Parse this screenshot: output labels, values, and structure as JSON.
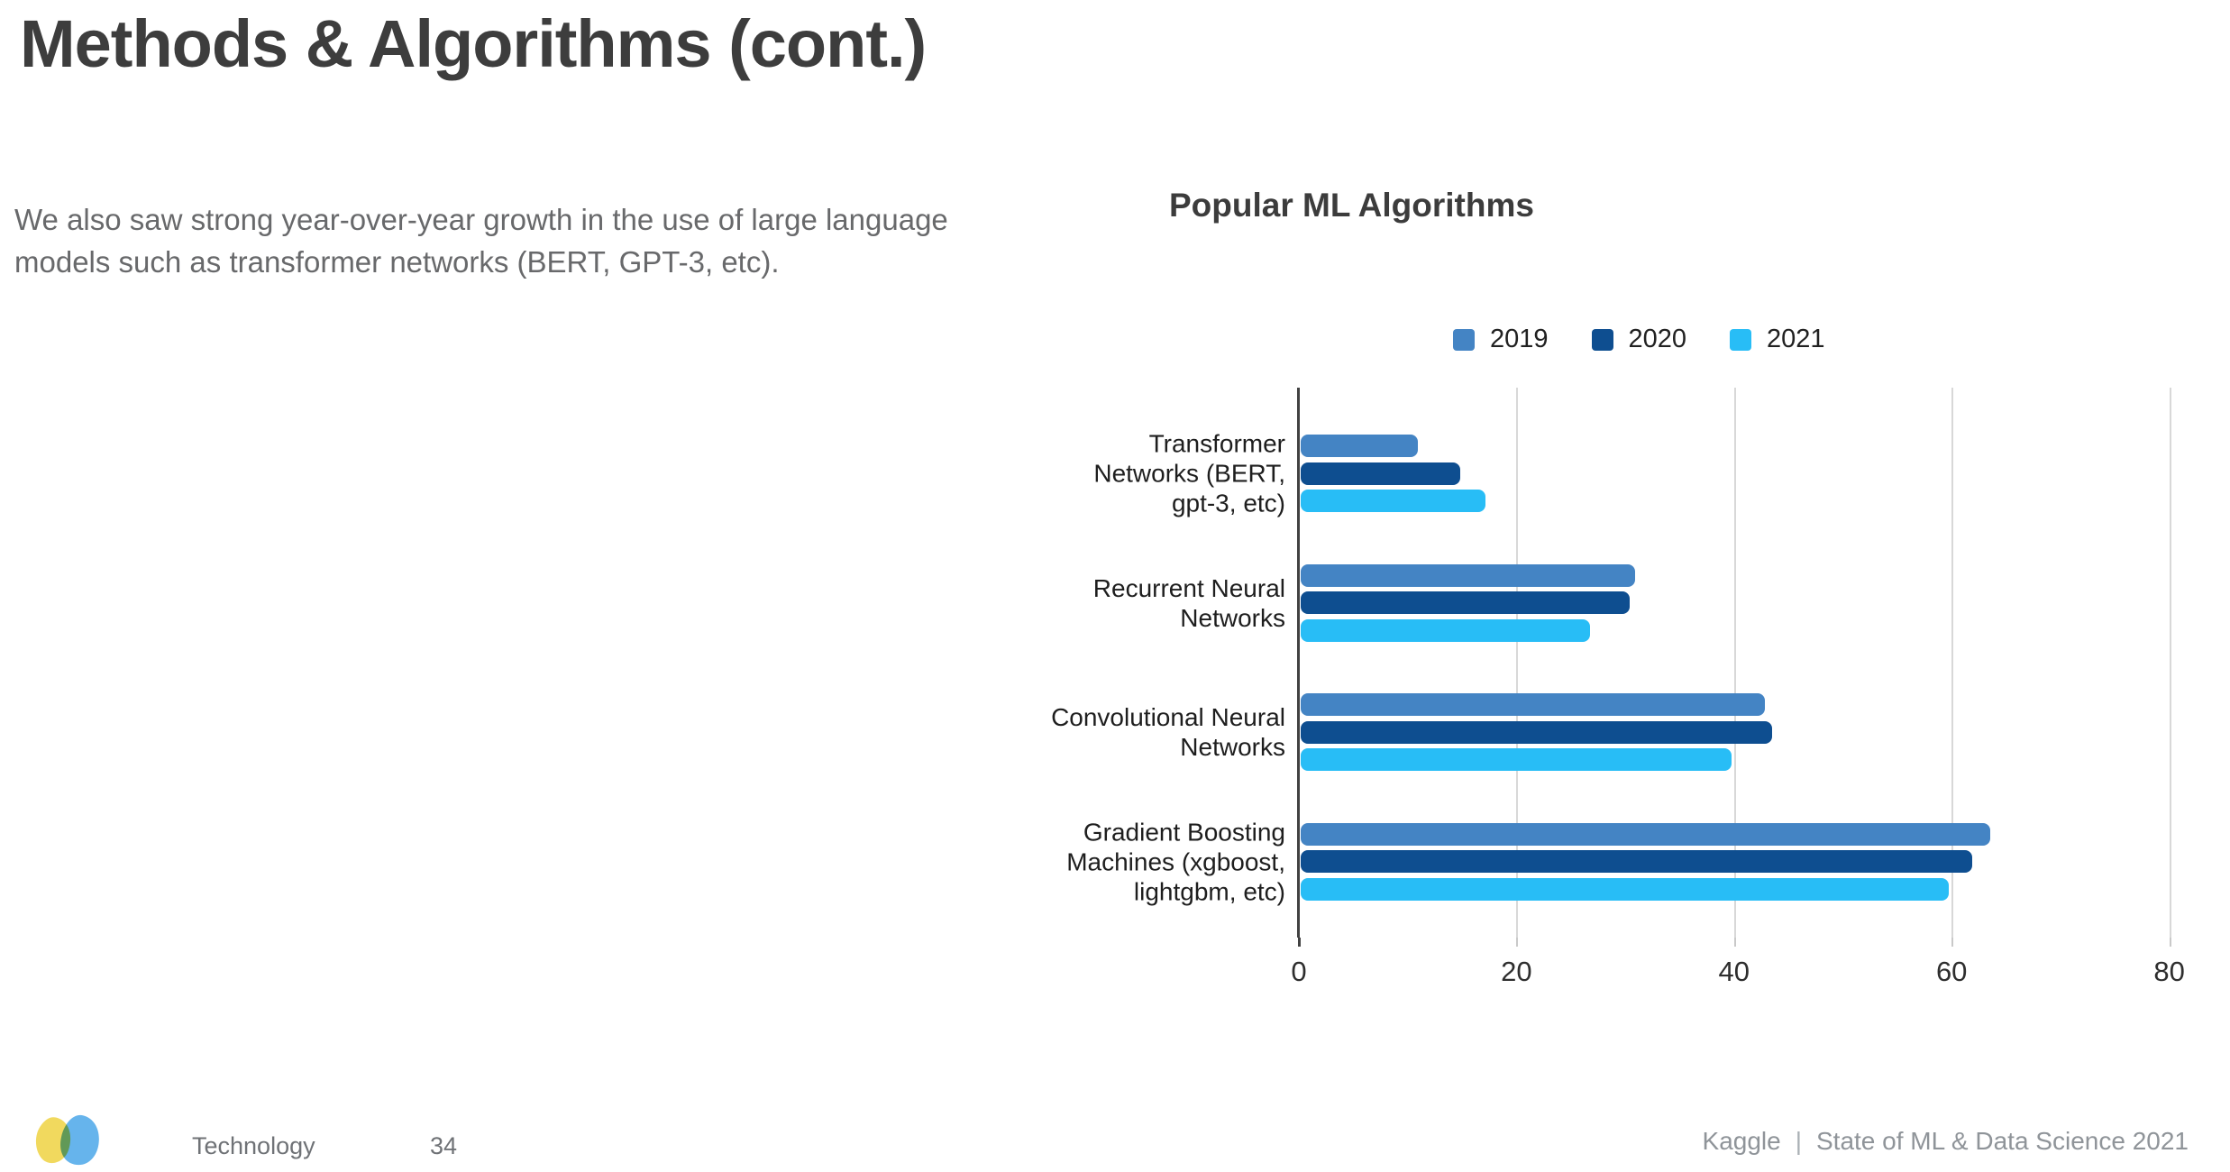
{
  "slide": {
    "title": "Methods & Algorithms (cont.)",
    "body_text": "We also saw strong year-over-year growth in the use of large language models such as transformer networks (BERT, GPT-3, etc)."
  },
  "chart_data": {
    "type": "bar",
    "orientation": "horizontal",
    "title": "Popular ML Algorithms",
    "categories": [
      "Transformer Networks (BERT, gpt-3, etc)",
      "Recurrent Neural Networks",
      "Convolutional Neural Networks",
      "Gradient Boosting Machines (xgboost, lightgbm, etc)"
    ],
    "category_lines": [
      [
        "Transformer",
        "Networks (BERT,",
        "gpt-3, etc)"
      ],
      [
        "Recurrent Neural",
        "Networks"
      ],
      [
        "Convolutional Neural",
        "Networks"
      ],
      [
        "Gradient Boosting",
        "Machines (xgboost,",
        "lightgbm, etc)"
      ]
    ],
    "series": [
      {
        "name": "2019",
        "color": "#4484C4",
        "values": [
          10.8,
          30.7,
          42.7,
          63.4
        ]
      },
      {
        "name": "2020",
        "color": "#0E4E90",
        "values": [
          14.7,
          30.2,
          43.3,
          61.7
        ]
      },
      {
        "name": "2021",
        "color": "#28BDF6",
        "values": [
          17,
          26.6,
          39.6,
          59.6
        ]
      }
    ],
    "xlabel": "",
    "ylabel": "",
    "xlim": [
      0,
      80
    ],
    "xticks": [
      0,
      20,
      40,
      60,
      80
    ],
    "grid": true,
    "legend_position": "top"
  },
  "colors": {
    "axis_line": "#424242",
    "gridline": "#d8d8d8",
    "title_text": "#3d3d3d",
    "body_text": "#68696b",
    "footer_text": "#6f7276",
    "footer_right_text": "#8f9499",
    "logo_yellow": "#F1D95E",
    "logo_blue": "#66B4EC"
  },
  "footer": {
    "section": "Technology",
    "page_number": "34",
    "brand": "Kaggle",
    "separator": "|",
    "report": "State of ML & Data Science 2021"
  }
}
